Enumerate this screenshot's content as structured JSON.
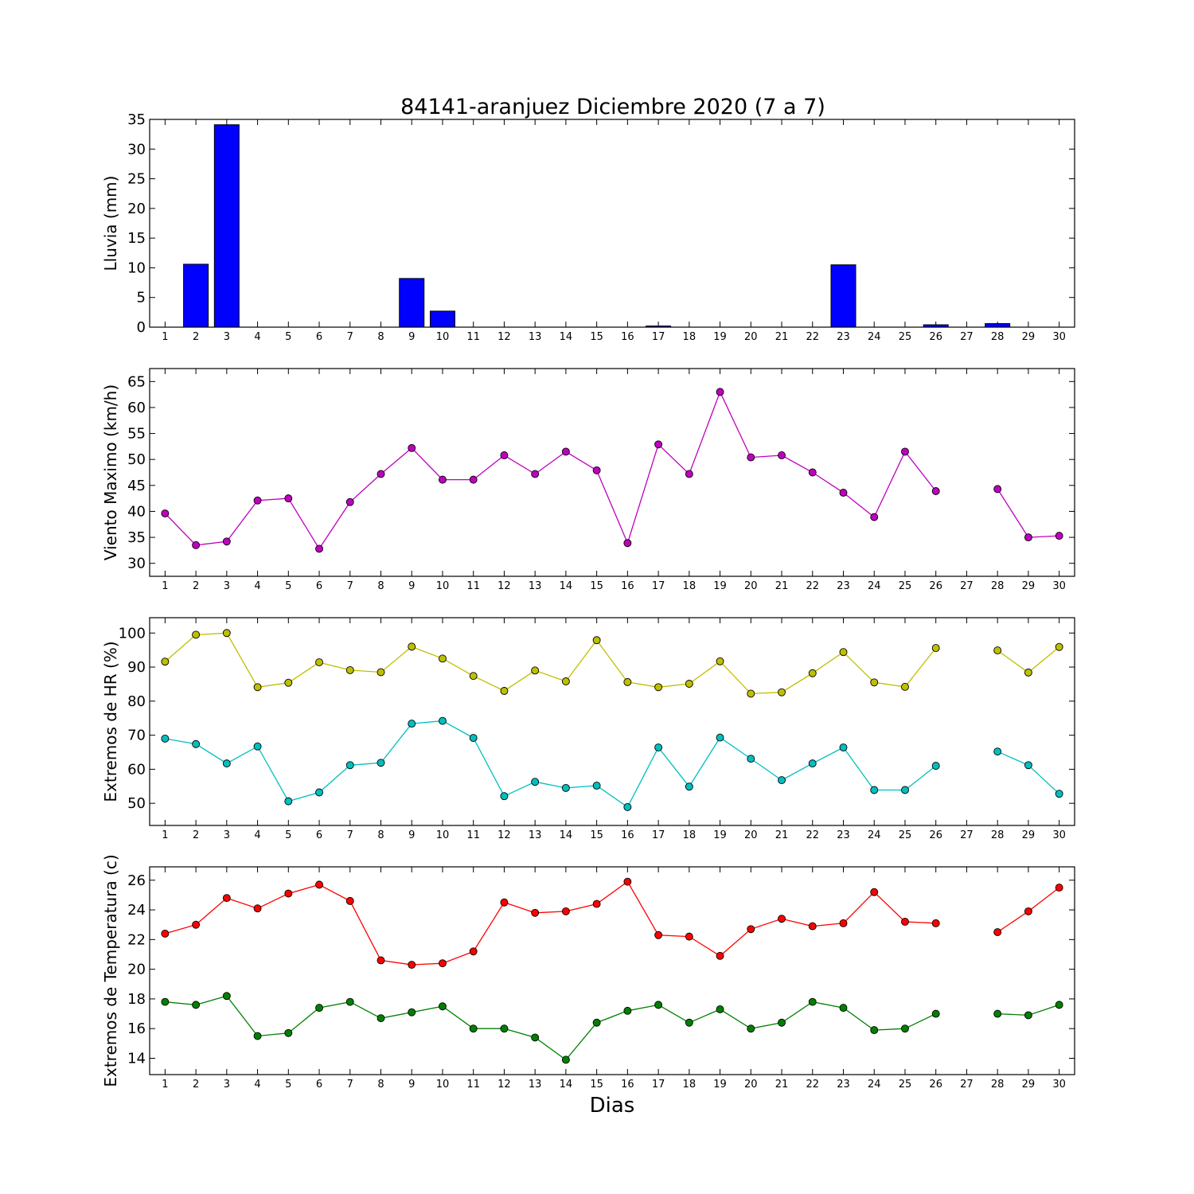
{
  "title": "84141-aranjuez Diciembre 2020  (7 a 7)",
  "chart_data": [
    {
      "type": "bar",
      "ylabel": "Lluvia (mm)",
      "ylim": [
        0,
        35
      ],
      "yticks": [
        0,
        5,
        10,
        15,
        20,
        25,
        30,
        35
      ],
      "x": [
        1,
        2,
        3,
        4,
        5,
        6,
        7,
        8,
        9,
        10,
        11,
        12,
        13,
        14,
        15,
        16,
        17,
        18,
        19,
        20,
        21,
        22,
        23,
        24,
        25,
        26,
        27,
        28,
        29,
        30
      ],
      "series": [
        {
          "values": [
            0,
            10.6,
            34.1,
            0,
            0,
            0,
            0,
            0,
            8.2,
            2.7,
            0,
            0,
            0,
            0,
            0,
            0,
            0.2,
            0,
            0,
            0,
            0,
            0,
            10.5,
            0,
            0,
            0.4,
            0,
            0.6,
            0,
            0
          ],
          "color": "#0000ff"
        }
      ]
    },
    {
      "type": "line",
      "ylabel": "Viento Maximo (km/h)",
      "ylim": [
        27.5,
        67.5
      ],
      "yticks": [
        30,
        35,
        40,
        45,
        50,
        55,
        60,
        65
      ],
      "x": [
        1,
        2,
        3,
        4,
        5,
        6,
        7,
        8,
        9,
        10,
        11,
        12,
        13,
        14,
        15,
        16,
        17,
        18,
        19,
        20,
        21,
        22,
        23,
        24,
        25,
        26,
        27,
        28,
        29,
        30
      ],
      "series": [
        {
          "values": [
            39.6,
            33.5,
            34.2,
            42.1,
            42.5,
            32.8,
            41.8,
            47.2,
            52.2,
            46.1,
            46.1,
            50.8,
            47.2,
            51.5,
            47.9,
            33.9,
            52.9,
            47.2,
            63.0,
            50.4,
            50.8,
            47.5,
            43.6,
            38.9,
            51.5,
            43.9,
            null,
            44.3,
            35.0,
            35.3
          ],
          "color": "#bf00bf"
        }
      ]
    },
    {
      "type": "line",
      "ylabel": "Extremos de HR (%)",
      "ylim": [
        43.5,
        104.5
      ],
      "yticks": [
        50,
        60,
        70,
        80,
        90,
        100
      ],
      "x": [
        1,
        2,
        3,
        4,
        5,
        6,
        7,
        8,
        9,
        10,
        11,
        12,
        13,
        14,
        15,
        16,
        17,
        18,
        19,
        20,
        21,
        22,
        23,
        24,
        25,
        26,
        27,
        28,
        29,
        30
      ],
      "series": [
        {
          "values": [
            91.6,
            99.5,
            100.0,
            84.1,
            85.4,
            91.4,
            89.1,
            88.5,
            96.0,
            92.5,
            87.4,
            83.0,
            89.0,
            85.8,
            97.9,
            85.6,
            84.1,
            85.1,
            91.7,
            82.2,
            82.6,
            88.2,
            94.4,
            85.5,
            84.2,
            95.6,
            null,
            94.9,
            88.4,
            95.9
          ],
          "color": "#bfbf00"
        },
        {
          "values": [
            69.0,
            67.4,
            61.7,
            66.7,
            50.6,
            53.2,
            61.2,
            61.9,
            73.4,
            74.2,
            69.2,
            52.1,
            56.3,
            54.5,
            55.2,
            48.9,
            66.4,
            54.9,
            69.3,
            63.1,
            56.8,
            61.7,
            66.4,
            53.9,
            53.9,
            61.0,
            null,
            65.2,
            61.2,
            52.8
          ],
          "color": "#00bfbf"
        }
      ]
    },
    {
      "type": "line",
      "ylabel": "Extremos de Temperatura (c)",
      "ylim": [
        12.9,
        26.9
      ],
      "yticks": [
        14,
        16,
        18,
        20,
        22,
        24,
        26
      ],
      "xlabel": "Dias",
      "x": [
        1,
        2,
        3,
        4,
        5,
        6,
        7,
        8,
        9,
        10,
        11,
        12,
        13,
        14,
        15,
        16,
        17,
        18,
        19,
        20,
        21,
        22,
        23,
        24,
        25,
        26,
        27,
        28,
        29,
        30
      ],
      "series": [
        {
          "values": [
            22.4,
            23.0,
            24.8,
            24.1,
            25.1,
            25.7,
            24.6,
            20.6,
            20.3,
            20.4,
            21.2,
            24.5,
            23.8,
            23.9,
            24.4,
            25.9,
            22.3,
            22.2,
            20.9,
            22.7,
            23.4,
            22.9,
            23.1,
            25.2,
            23.2,
            23.1,
            null,
            22.5,
            23.9,
            25.5
          ],
          "color": "#ff0000"
        },
        {
          "values": [
            17.8,
            17.6,
            18.2,
            15.5,
            15.7,
            17.4,
            17.8,
            16.7,
            17.1,
            17.5,
            16.0,
            16.0,
            15.4,
            13.9,
            16.4,
            17.2,
            17.6,
            16.4,
            17.3,
            16.0,
            16.4,
            17.8,
            17.4,
            15.9,
            16.0,
            17.0,
            null,
            17.0,
            16.9,
            17.6
          ],
          "color": "#008000"
        }
      ]
    }
  ]
}
